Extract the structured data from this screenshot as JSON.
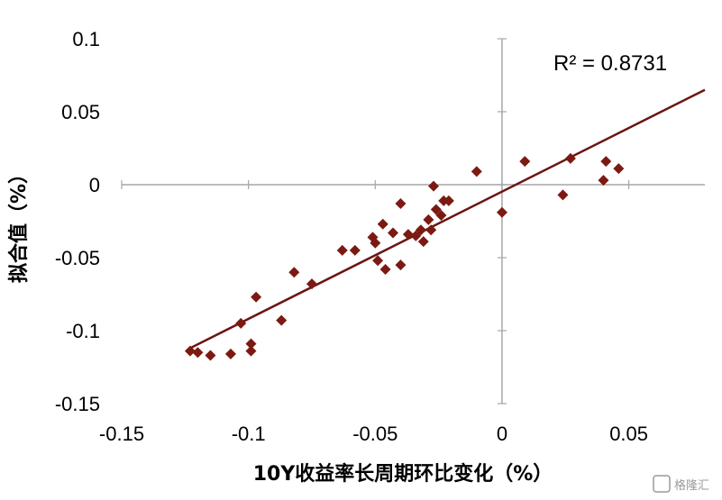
{
  "chart_data": {
    "type": "scatter",
    "xlabel": "10Y收益率长周期环比变化（%）",
    "ylabel": "拟合值（%）",
    "xlim": [
      -0.15,
      0.08
    ],
    "ylim": [
      -0.15,
      0.1
    ],
    "x_ticks": [
      "-0.15",
      "-0.1",
      "-0.05",
      "0",
      "0.05"
    ],
    "y_ticks": [
      "0.1",
      "0.05",
      "0",
      "-0.05",
      "-0.1",
      "-0.15"
    ],
    "annotation": "R² = 0.8731",
    "marker": "diamond",
    "colors": {
      "points": "#7b1a12",
      "trendline": "#6b1510",
      "axes": "#a6a6a6"
    },
    "points": [
      {
        "x": -0.123,
        "y": -0.114
      },
      {
        "x": -0.12,
        "y": -0.115
      },
      {
        "x": -0.115,
        "y": -0.117
      },
      {
        "x": -0.107,
        "y": -0.116
      },
      {
        "x": -0.103,
        "y": -0.095
      },
      {
        "x": -0.099,
        "y": -0.114
      },
      {
        "x": -0.099,
        "y": -0.109
      },
      {
        "x": -0.097,
        "y": -0.077
      },
      {
        "x": -0.087,
        "y": -0.093
      },
      {
        "x": -0.082,
        "y": -0.06
      },
      {
        "x": -0.075,
        "y": -0.068
      },
      {
        "x": -0.063,
        "y": -0.045
      },
      {
        "x": -0.058,
        "y": -0.045
      },
      {
        "x": -0.051,
        "y": -0.036
      },
      {
        "x": -0.05,
        "y": -0.04
      },
      {
        "x": -0.049,
        "y": -0.052
      },
      {
        "x": -0.047,
        "y": -0.027
      },
      {
        "x": -0.046,
        "y": -0.058
      },
      {
        "x": -0.043,
        "y": -0.033
      },
      {
        "x": -0.04,
        "y": -0.055
      },
      {
        "x": -0.04,
        "y": -0.013
      },
      {
        "x": -0.037,
        "y": -0.034
      },
      {
        "x": -0.034,
        "y": -0.035
      },
      {
        "x": -0.032,
        "y": -0.031
      },
      {
        "x": -0.031,
        "y": -0.039
      },
      {
        "x": -0.029,
        "y": -0.024
      },
      {
        "x": -0.028,
        "y": -0.031
      },
      {
        "x": -0.027,
        "y": -0.001
      },
      {
        "x": -0.026,
        "y": -0.017
      },
      {
        "x": -0.024,
        "y": -0.021
      },
      {
        "x": -0.023,
        "y": -0.011
      },
      {
        "x": -0.021,
        "y": -0.011
      },
      {
        "x": -0.01,
        "y": 0.009
      },
      {
        "x": 0.0,
        "y": -0.019
      },
      {
        "x": 0.009,
        "y": 0.016
      },
      {
        "x": 0.024,
        "y": -0.007
      },
      {
        "x": 0.027,
        "y": 0.018
      },
      {
        "x": 0.04,
        "y": 0.003
      },
      {
        "x": 0.041,
        "y": 0.016
      },
      {
        "x": 0.046,
        "y": 0.011
      }
    ],
    "trendline": {
      "x": [
        -0.123,
        0.08
      ],
      "y": [
        -0.112,
        0.065
      ]
    }
  },
  "watermark": "格隆汇"
}
